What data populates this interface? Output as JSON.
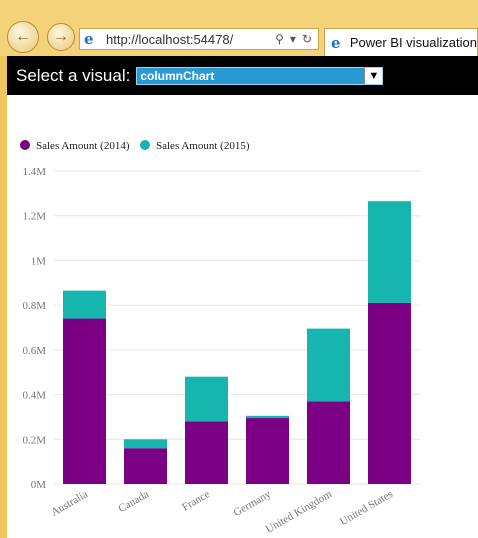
{
  "browser": {
    "url": "http://localhost:54478/",
    "tab_title": "Power BI visualization",
    "back_icon": "back-arrow-icon",
    "forward_icon": "forward-arrow-icon"
  },
  "selector": {
    "label": "Select a visual:",
    "value": "columnChart"
  },
  "colors": {
    "series_2014": "#7b0083",
    "series_2015": "#16b6ae"
  },
  "chart_data": {
    "type": "bar",
    "stacked": true,
    "categories": [
      "Australia",
      "Canada",
      "France",
      "Germany",
      "United Kingdom",
      "United States"
    ],
    "series": [
      {
        "name": "Sales Amount (2014)",
        "values": [
          740000,
          160000,
          280000,
          295000,
          370000,
          810000
        ]
      },
      {
        "name": "Sales Amount (2015)",
        "values": [
          125000,
          40000,
          200000,
          10000,
          325000,
          455000
        ]
      }
    ],
    "yticks": [
      "0M",
      "0.2M",
      "0.4M",
      "0.6M",
      "0.8M",
      "1M",
      "1.2M",
      "1.4M"
    ],
    "ylim": [
      0,
      1400000
    ],
    "legend_position": "top-left",
    "grid": true
  }
}
